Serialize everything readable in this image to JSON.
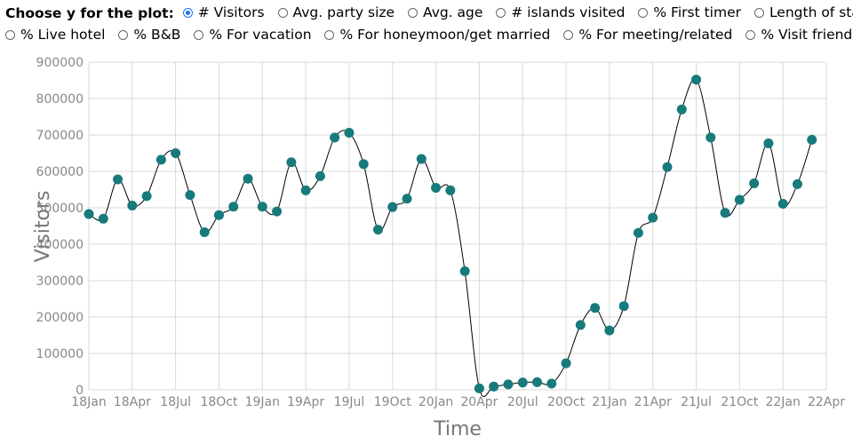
{
  "controls": {
    "prompt": "Choose y for the plot:",
    "options": [
      {
        "label": "# Visitors",
        "checked": true
      },
      {
        "label": "Avg. party size",
        "checked": false
      },
      {
        "label": "Avg. age",
        "checked": false
      },
      {
        "label": "# islands visited",
        "checked": false
      },
      {
        "label": "% First timer",
        "checked": false
      },
      {
        "label": "Length of stay",
        "checked": false
      },
      {
        "label": "% Live hotel",
        "checked": false
      },
      {
        "label": "% B&B",
        "checked": false
      },
      {
        "label": "% For vacation",
        "checked": false
      },
      {
        "label": "% For honeymoon/get married",
        "checked": false
      },
      {
        "label": "% For meeting/related",
        "checked": false
      },
      {
        "label": "% Visit friends",
        "checked": false
      }
    ]
  },
  "chart_data": {
    "type": "scatter",
    "xlabel": "Time",
    "ylabel": "Visitors",
    "ylim": [
      0,
      900000
    ],
    "yticks": [
      0,
      100000,
      200000,
      300000,
      400000,
      500000,
      600000,
      700000,
      800000,
      900000
    ],
    "xticks": [
      "18Jan",
      "18Apr",
      "18Jul",
      "18Oct",
      "19Jan",
      "19Apr",
      "19Jul",
      "19Oct",
      "20Jan",
      "20Apr",
      "20Jul",
      "20Oct",
      "21Jan",
      "21Apr",
      "21Jul",
      "21Oct",
      "22Jan",
      "22Apr"
    ],
    "grid": true,
    "point_color": "#177a7b",
    "line_color": "#000000",
    "series": [
      {
        "x": [
          "2018-01",
          "2018-02",
          "2018-03",
          "2018-04",
          "2018-05",
          "2018-06",
          "2018-07",
          "2018-08",
          "2018-09",
          "2018-10",
          "2018-11",
          "2018-12",
          "2019-01",
          "2019-02",
          "2019-03",
          "2019-04",
          "2019-05",
          "2019-06",
          "2019-07",
          "2019-08",
          "2019-09",
          "2019-10",
          "2019-11",
          "2019-12",
          "2020-01",
          "2020-02",
          "2020-03",
          "2020-04",
          "2020-05",
          "2020-06",
          "2020-07",
          "2020-08",
          "2020-09",
          "2020-10",
          "2020-11",
          "2020-12",
          "2021-01",
          "2021-02",
          "2021-03",
          "2021-04",
          "2021-05",
          "2021-06",
          "2021-07",
          "2021-08",
          "2021-09",
          "2021-10",
          "2021-11",
          "2021-12",
          "2022-01",
          "2022-02",
          "2022-03"
        ],
        "y": [
          483000,
          470000,
          578000,
          506000,
          532000,
          632000,
          650000,
          535000,
          433000,
          480000,
          503000,
          580000,
          503000,
          490000,
          625000,
          548000,
          587000,
          693000,
          706000,
          620000,
          440000,
          502000,
          525000,
          634000,
          555000,
          548000,
          326000,
          4000,
          9000,
          15000,
          20000,
          21000,
          17000,
          73000,
          178000,
          225000,
          163000,
          230000,
          431000,
          473000,
          612000,
          770000,
          852000,
          693000,
          486000,
          522000,
          567000,
          677000,
          511000,
          565000,
          687000
        ]
      }
    ]
  }
}
